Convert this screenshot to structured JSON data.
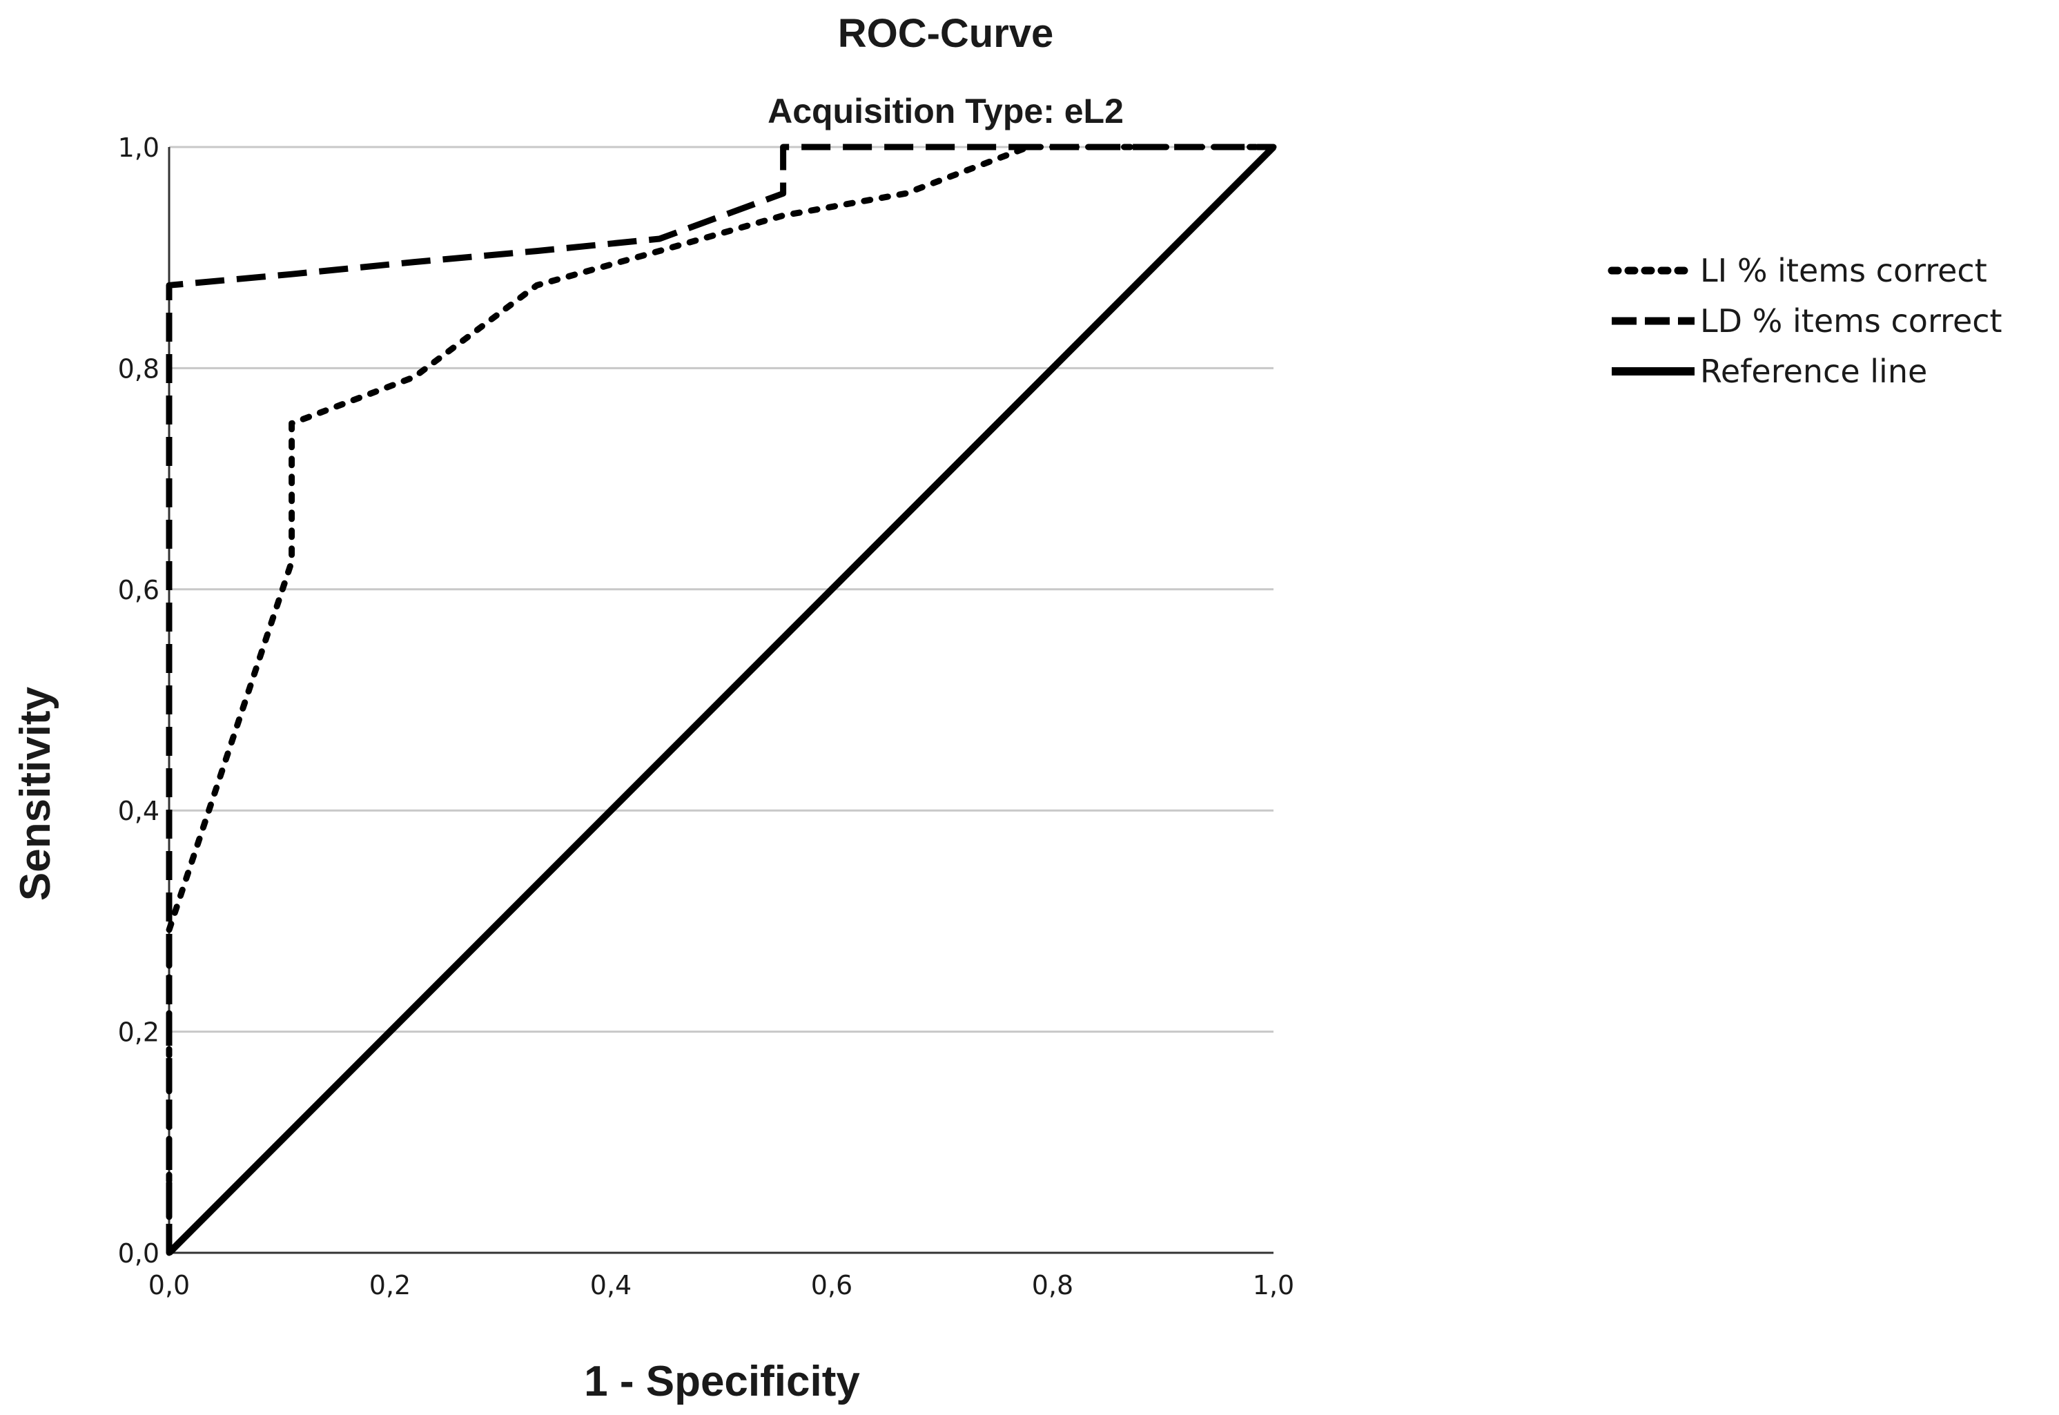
{
  "chart_data": {
    "type": "line",
    "title": "ROC-Curve",
    "subtitle": "Acquisition Type: eL2",
    "xlabel": "1 - Specificity",
    "ylabel": "Sensitivity",
    "xlim": [
      0,
      1
    ],
    "ylim": [
      0,
      1
    ],
    "x_ticks": [
      0,
      0.2,
      0.4,
      0.6,
      0.8,
      1.0
    ],
    "y_ticks": [
      0,
      0.2,
      0.4,
      0.6,
      0.8,
      1.0
    ],
    "x_tick_labels": [
      "0,0",
      "0,2",
      "0,4",
      "0,6",
      "0,8",
      "1,0"
    ],
    "y_tick_labels": [
      "0,0",
      "0,2",
      "0,4",
      "0,6",
      "0,8",
      "1,0"
    ],
    "grid": "horizontal",
    "legend_position": "right",
    "series": [
      {
        "name": "LI % items correct",
        "style": "dotted",
        "color": "#000000",
        "x": [
          0,
          0,
          0.111,
          0.111,
          0.222,
          0.333,
          0.444,
          0.556,
          0.667,
          0.778,
          1.0
        ],
        "y": [
          0,
          0.292,
          0.625,
          0.75,
          0.792,
          0.875,
          0.906,
          0.938,
          0.958,
          1.0,
          1.0
        ]
      },
      {
        "name": "LD % items correct",
        "style": "dashed",
        "color": "#000000",
        "x": [
          0,
          0,
          0.111,
          0.222,
          0.333,
          0.444,
          0.556,
          0.556,
          0.667,
          0.778,
          1.0
        ],
        "y": [
          0,
          0.875,
          0.885,
          0.896,
          0.906,
          0.917,
          0.958,
          1.0,
          1.0,
          1.0,
          1.0
        ]
      },
      {
        "name": "Reference line",
        "style": "solid",
        "color": "#000000",
        "x": [
          0,
          1
        ],
        "y": [
          0,
          1
        ]
      }
    ]
  }
}
